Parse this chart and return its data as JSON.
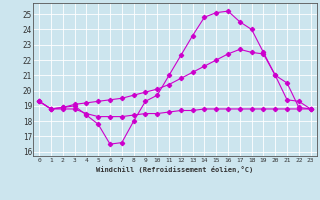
{
  "xlabel": "Windchill (Refroidissement éolien,°C)",
  "bg_color": "#cce5ee",
  "grid_color": "#ffffff",
  "line_color": "#cc00cc",
  "xlim": [
    -0.5,
    23.5
  ],
  "ylim": [
    15.7,
    25.7
  ],
  "yticks": [
    16,
    17,
    18,
    19,
    20,
    21,
    22,
    23,
    24,
    25
  ],
  "xticks": [
    0,
    1,
    2,
    3,
    4,
    5,
    6,
    7,
    8,
    9,
    10,
    11,
    12,
    13,
    14,
    15,
    16,
    17,
    18,
    19,
    20,
    21,
    22,
    23
  ],
  "hours": [
    0,
    1,
    2,
    3,
    4,
    5,
    6,
    7,
    8,
    9,
    10,
    11,
    12,
    13,
    14,
    15,
    16,
    17,
    18,
    19,
    20,
    21,
    22,
    23
  ],
  "line1": [
    19.3,
    18.8,
    18.9,
    19.0,
    18.4,
    17.8,
    16.5,
    16.6,
    18.0,
    19.3,
    19.7,
    21.0,
    22.3,
    23.6,
    24.8,
    25.1,
    25.2,
    24.5,
    24.0,
    22.5,
    21.0,
    19.4,
    19.3,
    18.8
  ],
  "line2": [
    19.3,
    18.8,
    18.9,
    19.1,
    19.2,
    19.3,
    19.4,
    19.5,
    19.7,
    19.9,
    20.1,
    20.4,
    20.8,
    21.2,
    21.6,
    22.0,
    22.4,
    22.7,
    22.5,
    22.4,
    21.0,
    20.5,
    18.9,
    18.8
  ],
  "line3": [
    19.3,
    18.8,
    18.8,
    18.8,
    18.5,
    18.3,
    18.3,
    18.3,
    18.4,
    18.5,
    18.5,
    18.6,
    18.7,
    18.7,
    18.8,
    18.8,
    18.8,
    18.8,
    18.8,
    18.8,
    18.8,
    18.8,
    18.8,
    18.8
  ]
}
